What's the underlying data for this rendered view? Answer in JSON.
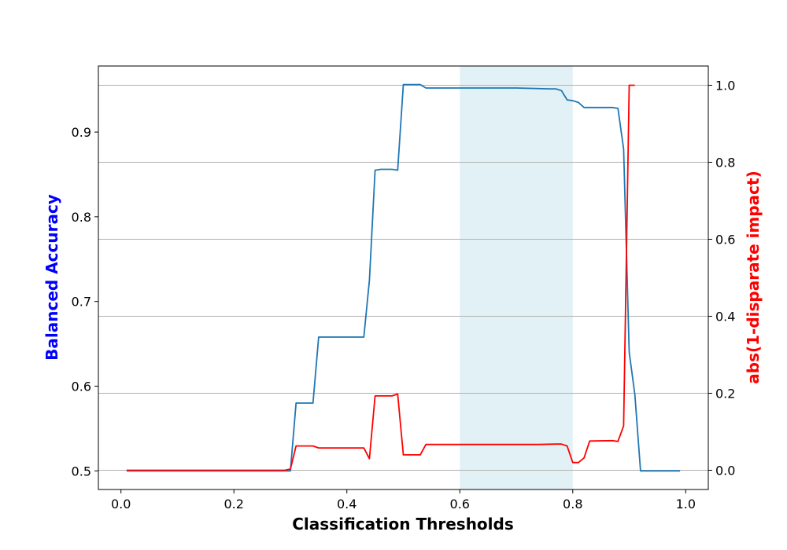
{
  "chart_data": {
    "type": "line",
    "xlabel": "Classification Thresholds",
    "ylabel_left": "Balanced Accuracy",
    "ylabel_right": "abs(1-disparate impact)",
    "colors": {
      "left_label": "#0000ff",
      "right_label": "#ff0000",
      "series_blue": "#1f77b4",
      "series_red": "#ff0000",
      "shade": "#add8e6",
      "grid": "#b0b0b0"
    },
    "xlim": [
      -0.04,
      1.04
    ],
    "ylim_left": [
      0.478,
      0.978
    ],
    "ylim_right": [
      -0.05,
      1.05
    ],
    "x_ticks": [
      "0.0",
      "0.2",
      "0.4",
      "0.6",
      "0.8",
      "1.0"
    ],
    "y_ticks_left": [
      "0.5",
      "0.6",
      "0.7",
      "0.8",
      "0.9"
    ],
    "y_ticks_right": [
      "0.0",
      "0.2",
      "0.4",
      "0.6",
      "0.8",
      "1.0"
    ],
    "grid": "horizontal lines at right-axis ticks",
    "shaded_region": [
      0.6,
      0.8
    ],
    "series": [
      {
        "axis": "left",
        "x": [
          0.01,
          0.29,
          0.3,
          0.31,
          0.33,
          0.34,
          0.35,
          0.36,
          0.4,
          0.42,
          0.43,
          0.44,
          0.45,
          0.46,
          0.47,
          0.48,
          0.49,
          0.5,
          0.51,
          0.52,
          0.53,
          0.54,
          0.6,
          0.7,
          0.76,
          0.77,
          0.78,
          0.79,
          0.8,
          0.81,
          0.82,
          0.83,
          0.87,
          0.88,
          0.89,
          0.9,
          0.91,
          0.92,
          0.99
        ],
        "y": [
          0.5,
          0.5,
          0.5,
          0.58,
          0.58,
          0.58,
          0.658,
          0.658,
          0.658,
          0.658,
          0.658,
          0.725,
          0.855,
          0.856,
          0.856,
          0.856,
          0.855,
          0.956,
          0.956,
          0.956,
          0.956,
          0.952,
          0.952,
          0.952,
          0.951,
          0.951,
          0.949,
          0.938,
          0.937,
          0.935,
          0.929,
          0.929,
          0.929,
          0.928,
          0.88,
          0.64,
          0.59,
          0.5,
          0.5
        ]
      },
      {
        "axis": "right",
        "x": [
          0.01,
          0.29,
          0.3,
          0.31,
          0.33,
          0.34,
          0.35,
          0.36,
          0.42,
          0.43,
          0.44,
          0.45,
          0.46,
          0.47,
          0.48,
          0.49,
          0.5,
          0.51,
          0.52,
          0.53,
          0.54,
          0.6,
          0.7,
          0.74,
          0.77,
          0.78,
          0.79,
          0.8,
          0.81,
          0.82,
          0.83,
          0.87,
          0.88,
          0.89,
          0.9,
          0.91
        ],
        "y": [
          0.0,
          0.0,
          0.003,
          0.063,
          0.063,
          0.063,
          0.058,
          0.058,
          0.058,
          0.058,
          0.03,
          0.193,
          0.193,
          0.193,
          0.193,
          0.198,
          0.04,
          0.04,
          0.04,
          0.04,
          0.067,
          0.067,
          0.067,
          0.067,
          0.068,
          0.068,
          0.063,
          0.02,
          0.02,
          0.032,
          0.076,
          0.077,
          0.075,
          0.115,
          1.0,
          1.0
        ]
      }
    ]
  }
}
